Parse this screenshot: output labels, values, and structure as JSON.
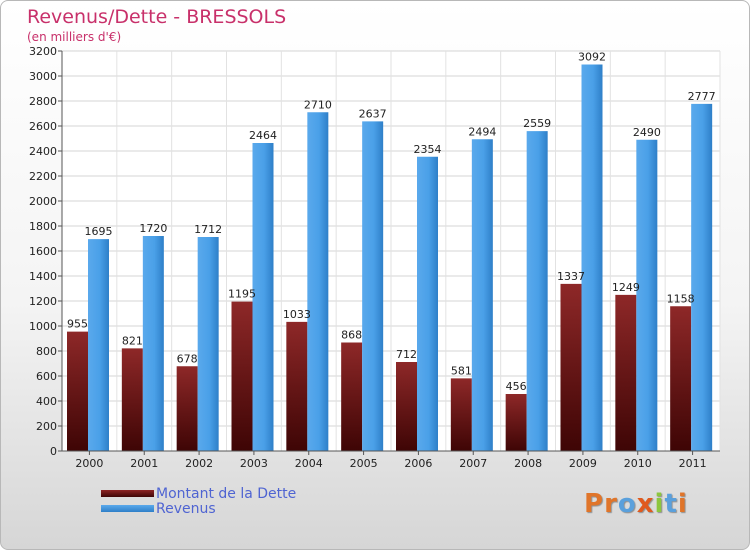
{
  "chart_data": {
    "type": "bar",
    "title": "Revenus/Dette - BRESSOLS",
    "subtitle": "(en milliers d'€)",
    "categories": [
      "2000",
      "2001",
      "2002",
      "2003",
      "2004",
      "2005",
      "2006",
      "2007",
      "2008",
      "2009",
      "2010",
      "2011"
    ],
    "series": [
      {
        "name": "Montant de la Dette",
        "color": "#8e2424",
        "values": [
          955,
          821,
          678,
          1195,
          1033,
          868,
          712,
          581,
          456,
          1337,
          1249,
          1158
        ]
      },
      {
        "name": "Revenus",
        "color": "#3f97e0",
        "values": [
          1695,
          1720,
          1712,
          2464,
          2710,
          2637,
          2354,
          2494,
          2559,
          3092,
          2490,
          2777
        ]
      }
    ],
    "ylim": [
      0,
      3200
    ],
    "ytick_step": 200,
    "grid": true,
    "legend": "bottom-left"
  },
  "logo": {
    "text": "Proxiti",
    "colors": [
      "#e0752a",
      "#e0752a",
      "#5aa0dc",
      "#e05a1e",
      "#8dc63f",
      "#5aa0dc",
      "#e0752a"
    ]
  }
}
